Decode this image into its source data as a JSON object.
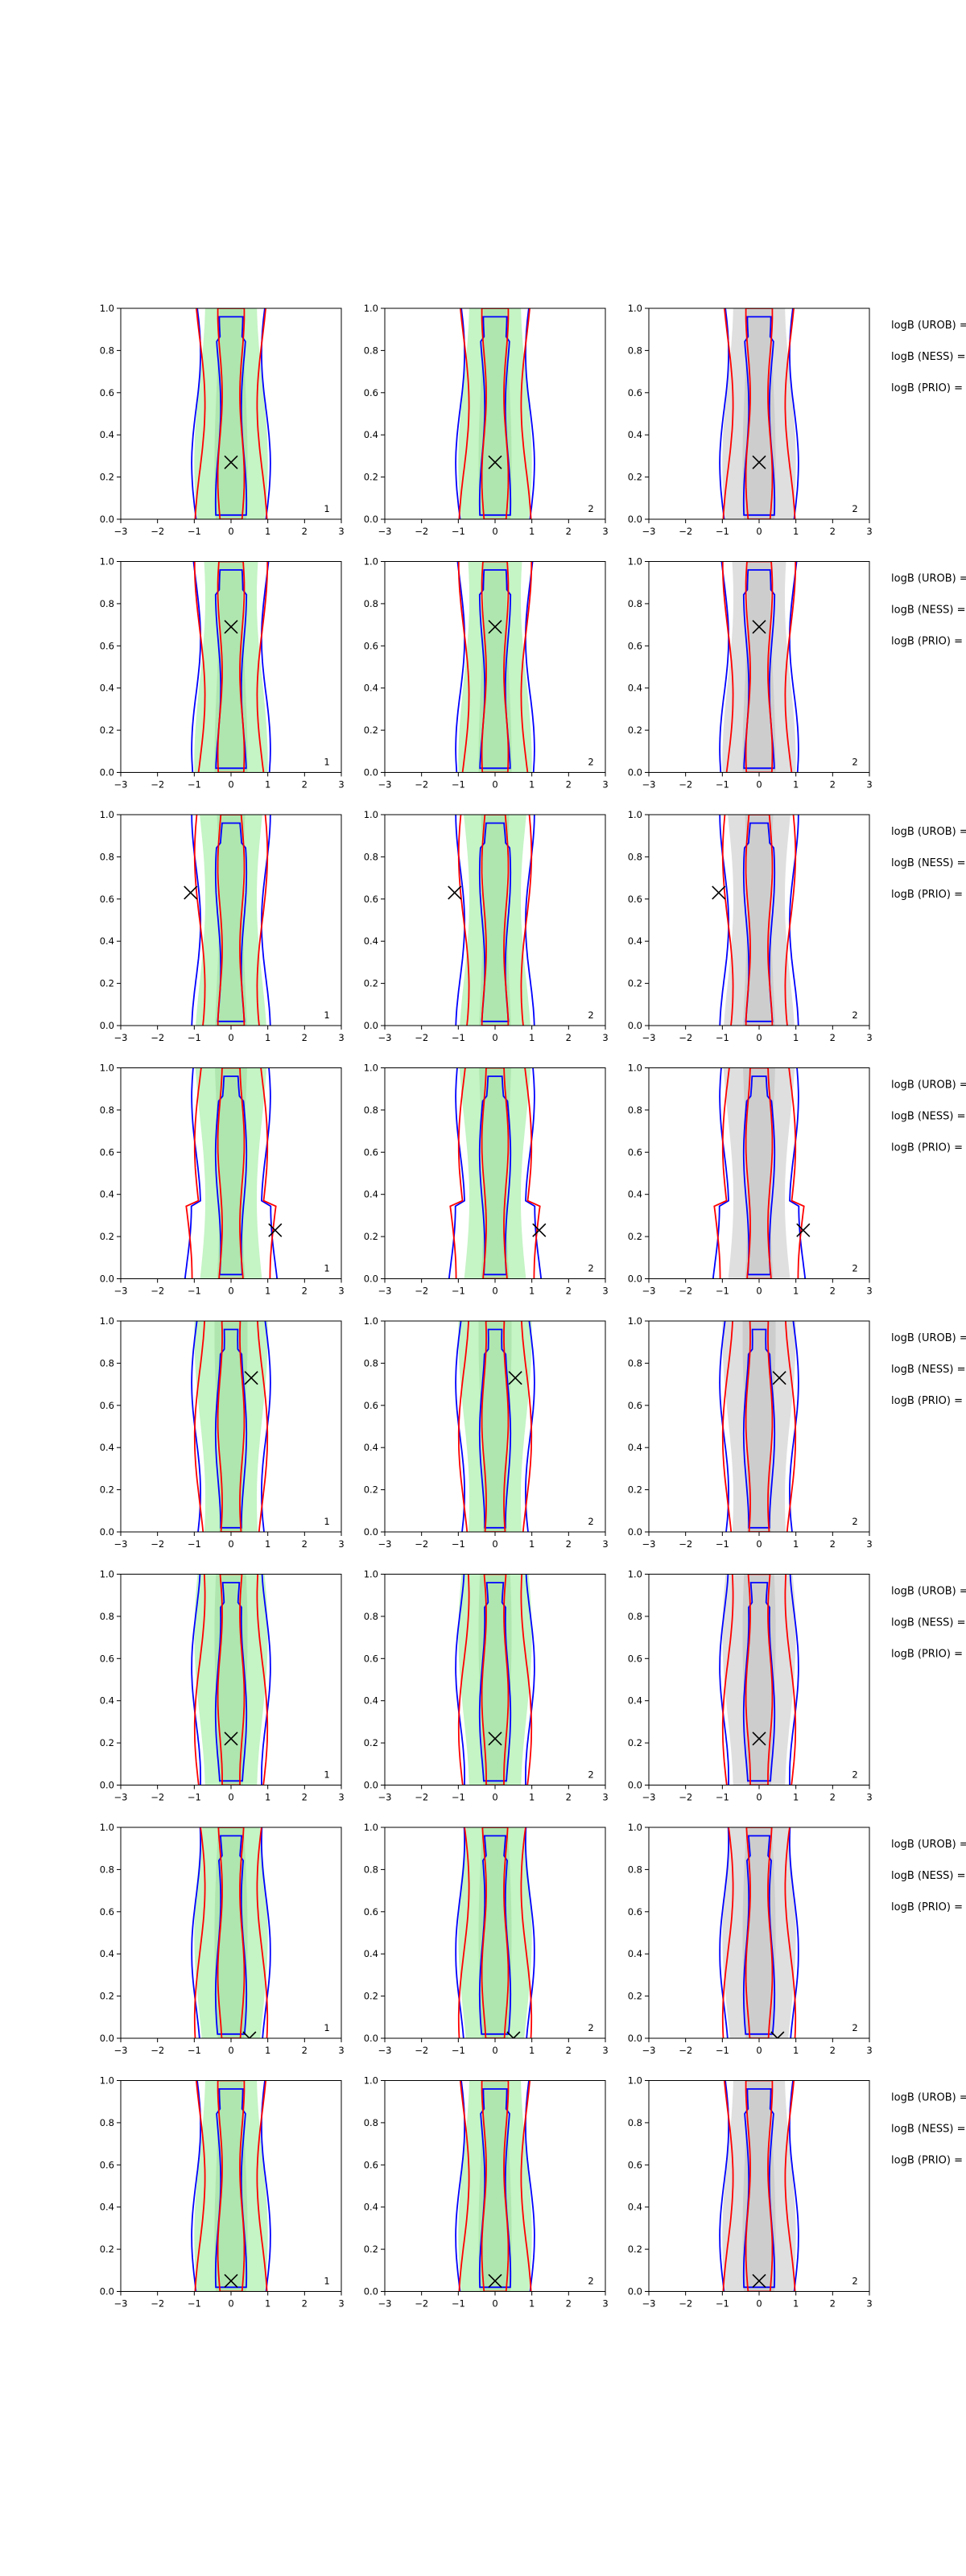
{
  "figure": {
    "rows": 8,
    "cols": 3,
    "panel_labels": [
      "1",
      "2",
      "2"
    ],
    "row_side_labels": [
      "logB (UROB) =",
      "logB (NESS) =",
      "logB (PRIO) ="
    ]
  },
  "colors": {
    "blue_contour": "#0000ff",
    "red_contour": "#ff0000",
    "green_fill": "#b2f0b2",
    "grey_fill": "#d4d4d4",
    "marker": "#000000"
  },
  "chart_data": {
    "type": "contour",
    "xlim": [
      -3,
      3
    ],
    "ylim": [
      0,
      1
    ],
    "x_ticks": [
      "−3",
      "−2",
      "−1",
      "0",
      "1",
      "2",
      "3"
    ],
    "y_ticks": [
      "0.0",
      "0.2",
      "0.4",
      "0.6",
      "0.8",
      "1.0"
    ],
    "markers": [
      {
        "row": 1,
        "x": 0.0,
        "y": 0.27
      },
      {
        "row": 2,
        "x": 0.0,
        "y": 0.69
      },
      {
        "row": 3,
        "x": -1.1,
        "y": 0.63
      },
      {
        "row": 4,
        "x": 1.2,
        "y": 0.23
      },
      {
        "row": 5,
        "x": 0.55,
        "y": 0.73
      },
      {
        "row": 6,
        "x": 0.0,
        "y": 0.22
      },
      {
        "row": 7,
        "x": 0.5,
        "y": 0.0
      },
      {
        "row": 8,
        "x": 0.0,
        "y": 0.05
      }
    ],
    "grid": false,
    "legend": "none"
  }
}
